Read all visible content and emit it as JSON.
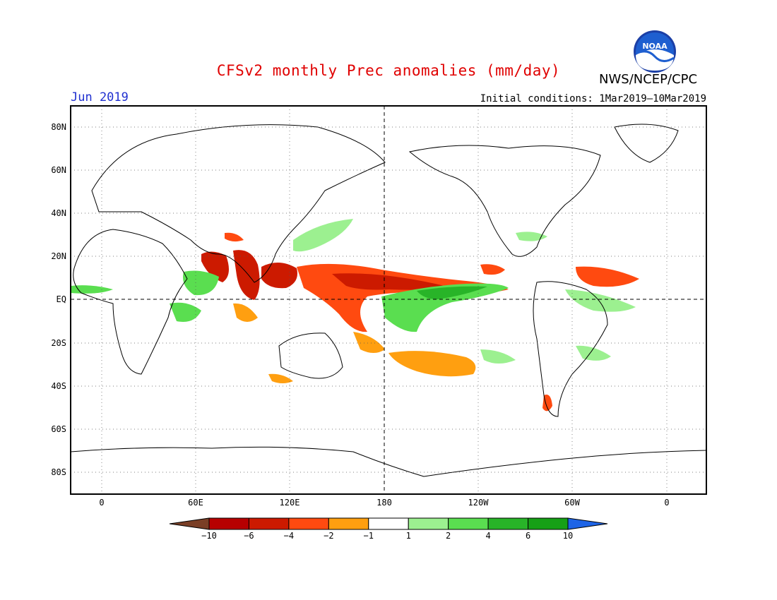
{
  "header": {
    "title": "CFSv2 monthly Prec anomalies (mm/day)",
    "org": "NWS/NCEP/CPC",
    "month": "Jun 2019",
    "initial_conditions_label": "Initial conditions:",
    "initial_conditions_value": "1Mar2019–10Mar2019"
  },
  "logo": {
    "icon": "noaa-logo-icon",
    "text": "NOAA"
  },
  "map": {
    "lat_labels": [
      "80N",
      "60N",
      "40N",
      "20N",
      "EQ",
      "20S",
      "40S",
      "60S",
      "80S"
    ],
    "lon_labels": [
      "0",
      "60E",
      "120E",
      "180",
      "120W",
      "60W",
      "0"
    ]
  },
  "colorbar": {
    "labels": [
      "−10",
      "−6",
      "−4",
      "−2",
      "−1",
      "1",
      "2",
      "4",
      "6",
      "10"
    ],
    "colors": [
      "#7a3f26",
      "#b70000",
      "#cc1a00",
      "#ff4a10",
      "#ff9f10",
      "#ffffff",
      "#9cf090",
      "#5ade50",
      "#28b428",
      "#16a016",
      "#1e64e6"
    ]
  },
  "colors": {
    "title": "#e00000",
    "month": "#2030d0",
    "wet_light": "#9cf090",
    "wet_mid": "#5ade50",
    "wet_dark": "#28b428",
    "dry_light": "#ff9f10",
    "dry_mid": "#ff4a10",
    "dry_dark": "#cc1a00"
  }
}
